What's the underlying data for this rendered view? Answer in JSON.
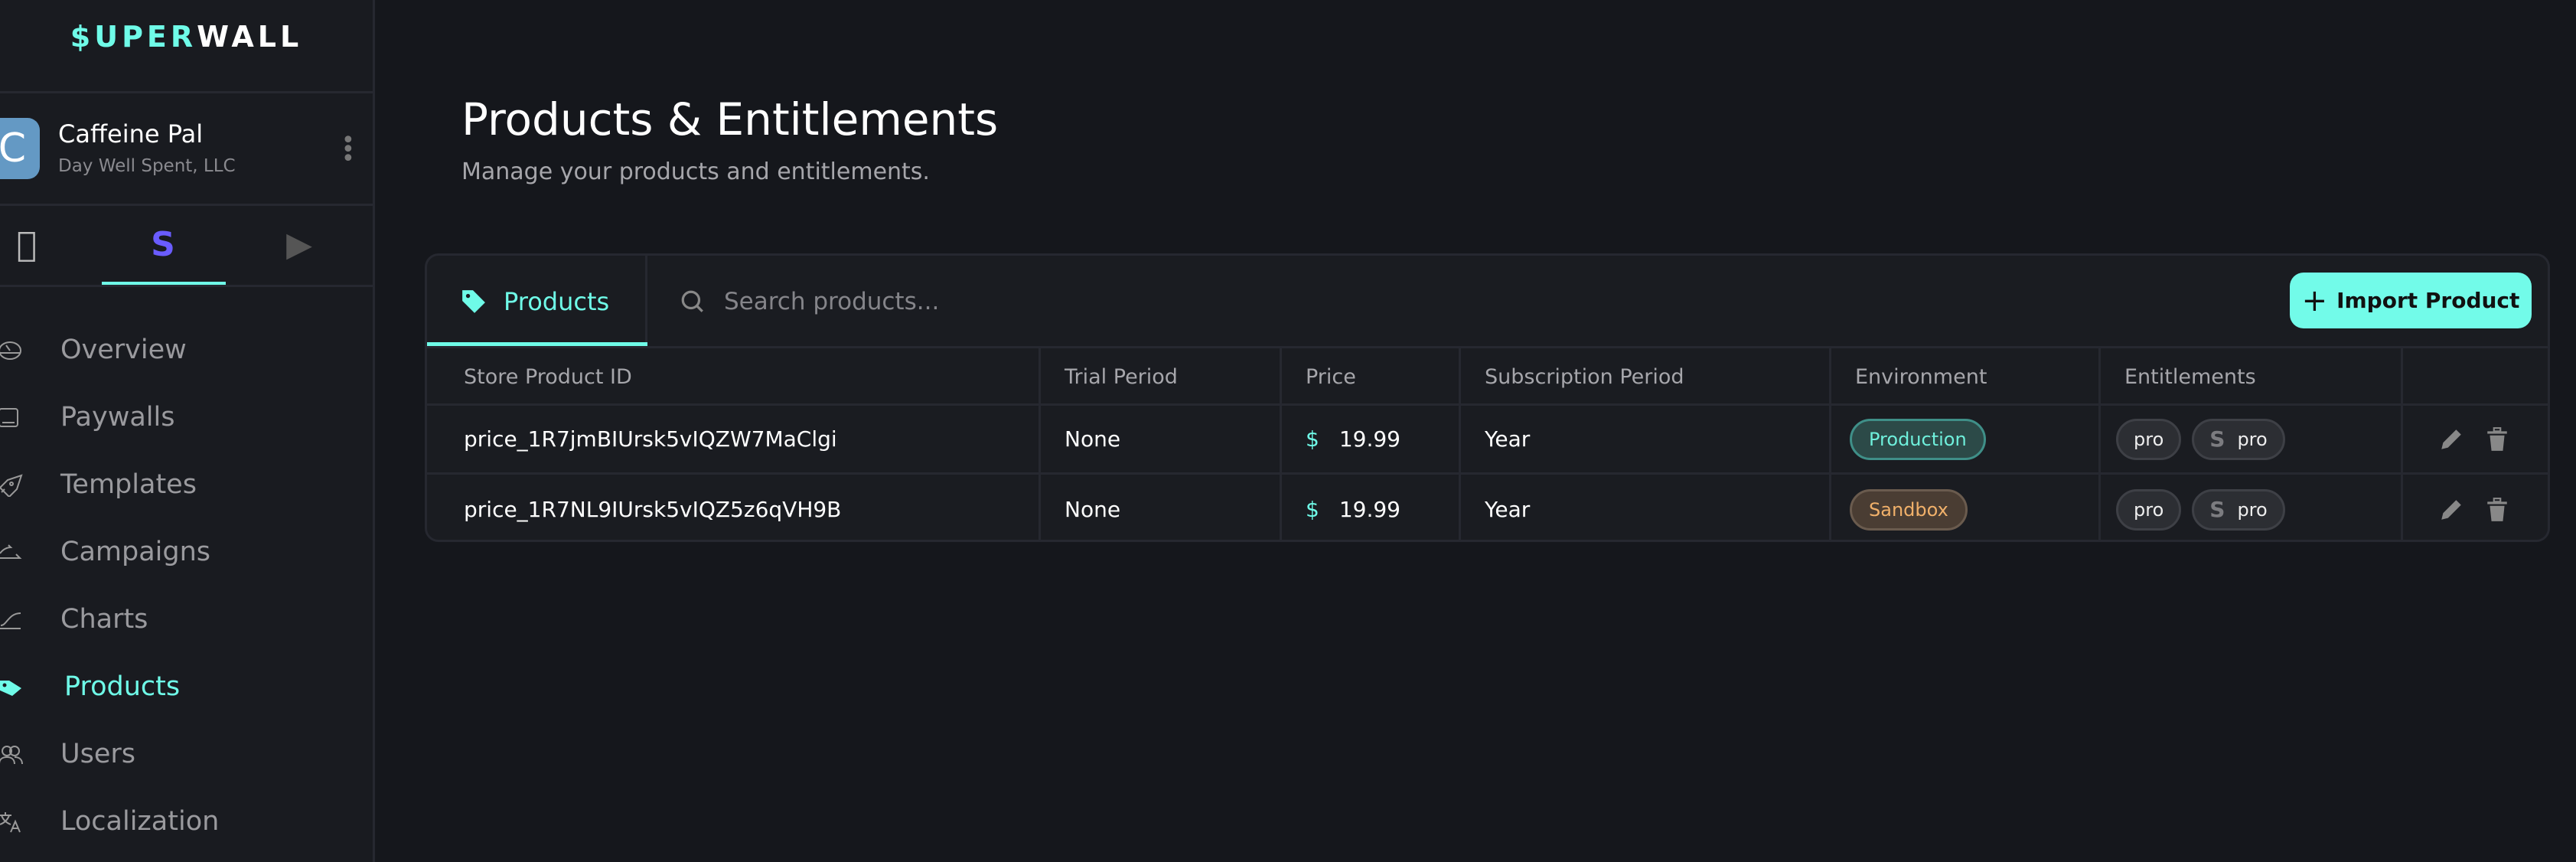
{
  "brand": {
    "logo_accent": "$UPER",
    "logo_rest": "WALL",
    "accent_color": "#6ffbe8"
  },
  "app": {
    "avatar_letter": "C",
    "name": "Caffeine Pal",
    "company": "Day Well Spent, LLC"
  },
  "platform_tabs": [
    {
      "icon": "apple-icon"
    },
    {
      "icon": "stripe-icon",
      "active": true
    },
    {
      "icon": "play-store-icon"
    }
  ],
  "nav": [
    {
      "label": "Overview",
      "icon": "gauge-icon"
    },
    {
      "label": "Paywalls",
      "icon": "tablet-icon"
    },
    {
      "label": "Templates",
      "icon": "rocket-icon"
    },
    {
      "label": "Campaigns",
      "icon": "arrows-icon"
    },
    {
      "label": "Charts",
      "icon": "chart-curve-icon"
    },
    {
      "label": "Products",
      "icon": "tag-icon",
      "active": true
    },
    {
      "label": "Users",
      "icon": "users-icon"
    },
    {
      "label": "Localization",
      "icon": "translate-icon"
    }
  ],
  "page": {
    "title": "Products & Entitlements",
    "subtitle": "Manage your products and entitlements."
  },
  "toolbar": {
    "tab_label": "Products",
    "search_placeholder": "Search products...",
    "import_label": "Import Product"
  },
  "table": {
    "columns": [
      "Store Product ID",
      "Trial Period",
      "Price",
      "Subscription Period",
      "Environment",
      "Entitlements"
    ],
    "rows": [
      {
        "id": "price_1R7jmBIUrsk5vIQZW7MaClgi",
        "trial": "None",
        "currency": "$",
        "price": "19.99",
        "period": "Year",
        "environment": "Production",
        "entitlements": [
          "pro",
          "pro"
        ]
      },
      {
        "id": "price_1R7NL9IUrsk5vIQZ5z6qVH9B",
        "trial": "None",
        "currency": "$",
        "price": "19.99",
        "period": "Year",
        "environment": "Sandbox",
        "entitlements": [
          "pro",
          "pro"
        ]
      }
    ]
  }
}
